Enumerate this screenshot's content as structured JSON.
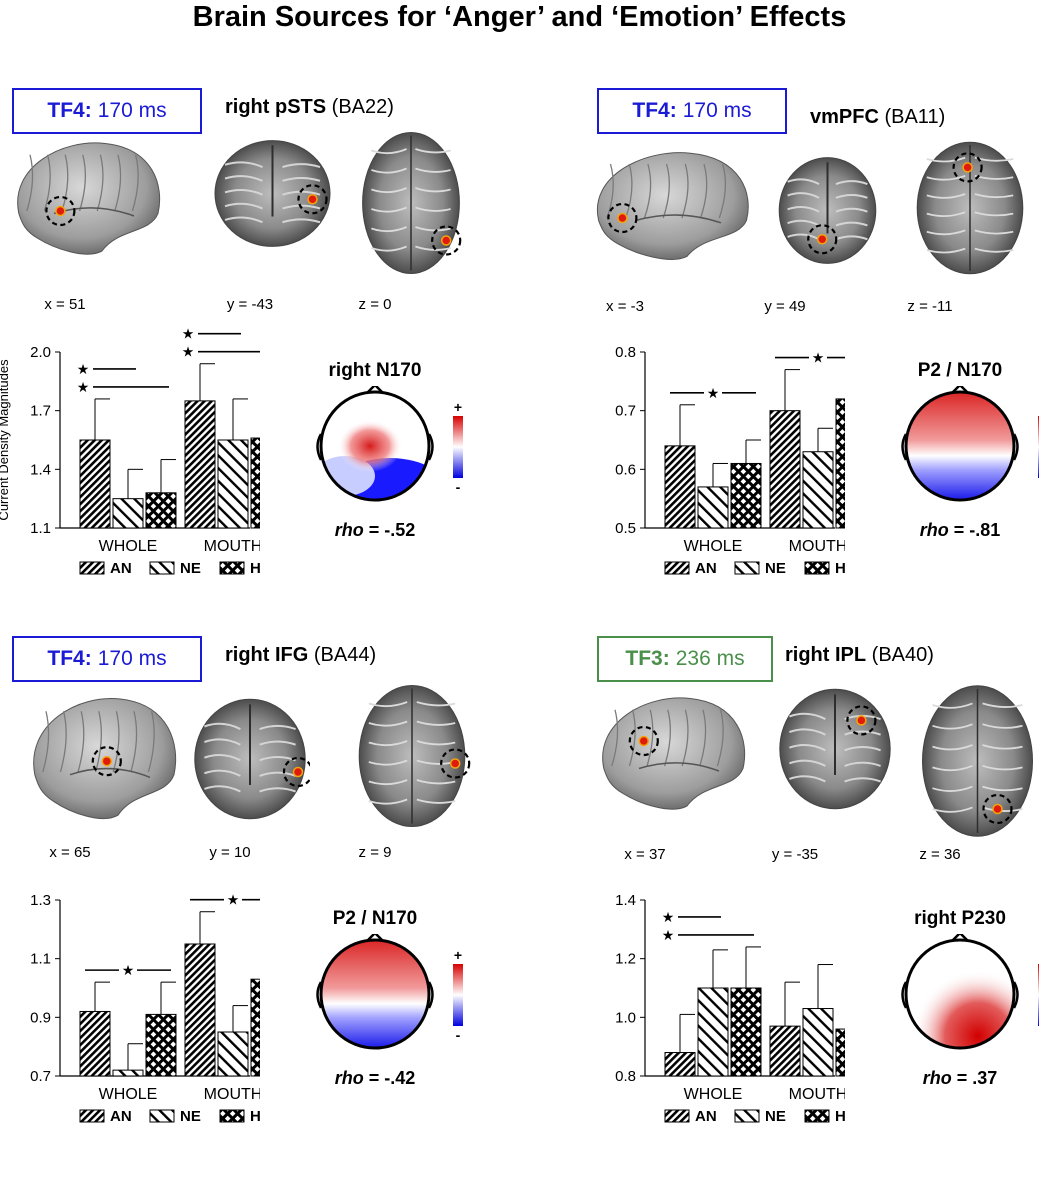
{
  "title": "Brain Sources for ‘Anger’ and ‘Emotion’ Effects",
  "shared_ylabel": "Current Density Magnitudes",
  "legend": [
    {
      "code": "AN",
      "pattern": "diag-dense"
    },
    {
      "code": "NE",
      "pattern": "diag-wide"
    },
    {
      "code": "HA",
      "pattern": "checker"
    }
  ],
  "panels": [
    {
      "tf_label": "TF4:",
      "tf_time": "170 ms",
      "tf_color": "#1b1bd6",
      "region_bold": "right pSTS",
      "region_ba": "(BA22)",
      "coords": [
        "x = 51",
        "y = -43",
        "z = 0"
      ],
      "topo_title": "right N170",
      "rho_value": "= -.52",
      "rho_label": "rho",
      "topo_pattern": "n170"
    },
    {
      "tf_label": "TF4:",
      "tf_time": "170 ms",
      "tf_color": "#1b1bd6",
      "region_bold": "vmPFC",
      "region_ba": "(BA11)",
      "coords": [
        "x = -3",
        "y = 49",
        "z = -11"
      ],
      "topo_title": "P2 / N170",
      "rho_value": "= -.81",
      "rho_label": "rho",
      "topo_pattern": "p2n170"
    },
    {
      "tf_label": "TF4:",
      "tf_time": "170 ms",
      "tf_color": "#1b1bd6",
      "region_bold": "right IFG",
      "region_ba": "(BA44)",
      "coords": [
        "x = 65",
        "y = 10",
        "z = 9"
      ],
      "topo_title": "P2 / N170",
      "rho_value": "= -.42",
      "rho_label": "rho",
      "topo_pattern": "p2n170"
    },
    {
      "tf_label": "TF3:",
      "tf_time": "236 ms",
      "tf_color": "#4a8f4a",
      "region_bold": "right IPL",
      "region_ba": "(BA40)",
      "coords": [
        "x = 37",
        "y = -35",
        "z = 36"
      ],
      "topo_title": "right P230",
      "rho_value": "= .37",
      "rho_label": "rho",
      "topo_pattern": "p230"
    }
  ],
  "chart_data": [
    {
      "type": "bar",
      "categories": [
        "WHOLE",
        "MOUTH"
      ],
      "series": [
        {
          "name": "AN",
          "values": [
            1.55,
            1.75
          ],
          "errors": [
            0.21,
            0.19
          ]
        },
        {
          "name": "NE",
          "values": [
            1.25,
            1.55
          ],
          "errors": [
            0.15,
            0.21
          ]
        },
        {
          "name": "HA",
          "values": [
            1.28,
            1.56
          ],
          "errors": [
            0.17,
            0.22
          ]
        }
      ],
      "ylim": [
        1.1,
        2.0
      ],
      "yticks": [
        "1.1",
        "1.4",
        "1.7",
        "2.0"
      ],
      "significance": [
        {
          "group": 0,
          "from": "AN",
          "to": "NE",
          "level": 1,
          "symbol": "★"
        },
        {
          "group": 0,
          "from": "AN",
          "to": "HA",
          "level": 0,
          "symbol": "★"
        },
        {
          "group": 1,
          "from": "AN",
          "to": "NE",
          "level": 1,
          "symbol": "★"
        },
        {
          "group": 1,
          "from": "AN",
          "to": "HA",
          "level": 0,
          "symbol": "★"
        }
      ]
    },
    {
      "type": "bar",
      "categories": [
        "WHOLE",
        "MOUTH"
      ],
      "series": [
        {
          "name": "AN",
          "values": [
            0.64,
            0.7
          ],
          "errors": [
            0.07,
            0.07
          ]
        },
        {
          "name": "NE",
          "values": [
            0.57,
            0.63
          ],
          "errors": [
            0.04,
            0.04
          ]
        },
        {
          "name": "HA",
          "values": [
            0.61,
            0.72
          ],
          "errors": [
            0.04,
            0.04
          ]
        }
      ],
      "ylim": [
        0.5,
        0.8
      ],
      "yticks": [
        "0.5",
        "0.6",
        "0.7",
        "0.8"
      ],
      "significance": [
        {
          "group": 0,
          "from": "AN",
          "to": "HA",
          "level": 0,
          "symbol": "★",
          "centered": true
        },
        {
          "group": 1,
          "from": "AN",
          "to": "HA",
          "level": 0,
          "symbol": "★",
          "centered": true
        }
      ]
    },
    {
      "type": "bar",
      "categories": [
        "WHOLE",
        "MOUTH"
      ],
      "series": [
        {
          "name": "AN",
          "values": [
            0.92,
            1.15
          ],
          "errors": [
            0.1,
            0.11
          ]
        },
        {
          "name": "NE",
          "values": [
            0.72,
            0.85
          ],
          "errors": [
            0.09,
            0.09
          ]
        },
        {
          "name": "HA",
          "values": [
            0.91,
            1.03
          ],
          "errors": [
            0.11,
            0.12
          ]
        }
      ],
      "ylim": [
        0.7,
        1.3
      ],
      "yticks": [
        "0.7",
        "0.9",
        "1.1",
        "1.3"
      ],
      "significance": [
        {
          "group": 0,
          "from": "AN",
          "to": "HA",
          "level": 0,
          "symbol": "★",
          "centered": true
        },
        {
          "group": 1,
          "from": "AN",
          "to": "HA",
          "level": 0,
          "symbol": "★",
          "centered": true
        }
      ]
    },
    {
      "type": "bar",
      "categories": [
        "WHOLE",
        "MOUTH"
      ],
      "series": [
        {
          "name": "AN",
          "values": [
            0.88,
            0.97
          ],
          "errors": [
            0.13,
            0.15
          ]
        },
        {
          "name": "NE",
          "values": [
            1.1,
            1.03
          ],
          "errors": [
            0.13,
            0.15
          ]
        },
        {
          "name": "HA",
          "values": [
            1.1,
            0.96
          ],
          "errors": [
            0.14,
            0.14
          ]
        }
      ],
      "ylim": [
        0.8,
        1.4
      ],
      "yticks": [
        "0.8",
        "1.0",
        "1.2",
        "1.4"
      ],
      "significance": [
        {
          "group": 0,
          "from": "AN",
          "to": "NE",
          "level": 1,
          "symbol": "★"
        },
        {
          "group": 0,
          "from": "AN",
          "to": "HA",
          "level": 0,
          "symbol": "★"
        }
      ]
    }
  ]
}
